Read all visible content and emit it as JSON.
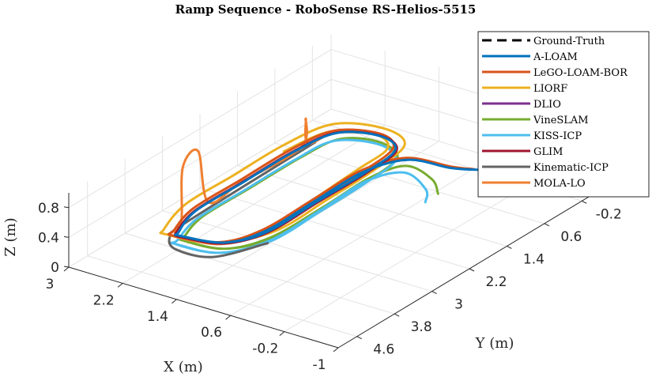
{
  "chart_data": {
    "type": "line",
    "projection": "3d",
    "title": "Ramp Sequence - RoboSense RS-Helios-5515",
    "xlabel": "X (m)",
    "ylabel": "Y (m)",
    "zlabel": "Z (m)",
    "xlim": [
      -1,
      3
    ],
    "ylim": [
      -0.6,
      5
    ],
    "zlim": [
      0,
      1
    ],
    "xticks": [
      "3",
      "2.2",
      "1.4",
      "0.6",
      "-0.2",
      "-1"
    ],
    "xtick_values": [
      3,
      2.2,
      1.4,
      0.6,
      -0.2,
      -1
    ],
    "yticks": [
      "-0.2",
      "0.6",
      "1.4",
      "2.2",
      "3",
      "3.8",
      "4.6"
    ],
    "ytick_values": [
      -0.2,
      0.6,
      1.4,
      2.2,
      3,
      3.8,
      4.6
    ],
    "zticks": [
      "0",
      "0.4",
      "0.8"
    ],
    "ztick_values": [
      0,
      0.4,
      0.8
    ],
    "grid": true,
    "legend_position": "top-right",
    "series": [
      {
        "name": "Ground-Truth",
        "color": "#000000",
        "dashed": true,
        "points": []
      },
      {
        "name": "VineSLAM",
        "color": "#77AC30",
        "points": [
          [
            2.0,
            4.0,
            0.25
          ],
          [
            1.45,
            3.9,
            0.25
          ],
          [
            1.15,
            3.3,
            0.25
          ],
          [
            1.12,
            2.2,
            0.25
          ],
          [
            1.15,
            1.2,
            0.25
          ],
          [
            1.25,
            0.5,
            0.25
          ],
          [
            1.7,
            0.28,
            0.25
          ],
          [
            2.12,
            0.5,
            0.25
          ],
          [
            2.2,
            1.2,
            0.25
          ],
          [
            2.2,
            2.3,
            0.25
          ],
          [
            2.2,
            3.3,
            0.25
          ],
          [
            2.05,
            3.9,
            0.25
          ],
          [
            2.0,
            4.0,
            0.25
          ],
          [
            1.45,
            3.9,
            0.25
          ],
          [
            1.18,
            3.3,
            0.25
          ],
          [
            1.16,
            2.2,
            0.25
          ],
          [
            1.18,
            1.2,
            0.25
          ],
          [
            1.05,
            0.6,
            0.22
          ],
          [
            0.6,
            0.7,
            0.2
          ],
          [
            0.3,
            1.0,
            0.2
          ]
        ]
      },
      {
        "name": "KISS-ICP",
        "color": "#4DBEEE",
        "points": [
          [
            2.1,
            4.05,
            0.2
          ],
          [
            1.5,
            3.95,
            0.2
          ],
          [
            1.18,
            3.3,
            0.2
          ],
          [
            1.18,
            2.2,
            0.2
          ],
          [
            1.2,
            1.2,
            0.2
          ],
          [
            1.28,
            0.5,
            0.2
          ],
          [
            1.7,
            0.25,
            0.2
          ],
          [
            2.2,
            0.48,
            0.2
          ],
          [
            2.28,
            1.2,
            0.2
          ],
          [
            2.28,
            2.3,
            0.2
          ],
          [
            2.28,
            3.3,
            0.2
          ],
          [
            2.12,
            3.95,
            0.2
          ],
          [
            2.1,
            4.05,
            0.2
          ],
          [
            1.5,
            3.95,
            0.2
          ],
          [
            1.2,
            3.3,
            0.2
          ],
          [
            1.2,
            2.2,
            0.2
          ],
          [
            1.22,
            1.2,
            0.2
          ],
          [
            1.0,
            0.7,
            0.18
          ],
          [
            0.55,
            0.9,
            0.15
          ],
          [
            0.35,
            1.2,
            0.15
          ]
        ]
      },
      {
        "name": "Kinematic-ICP",
        "color": "#636363",
        "points": [
          [
            1.3,
            3.2,
            0.1
          ],
          [
            1.61,
            3.91,
            0.1
          ],
          [
            2.1,
            4.0,
            0.1
          ],
          [
            2.37,
            3.75,
            0.1
          ],
          [
            2.45,
            3.3,
            0.1
          ],
          [
            2.49,
            0.47,
            0.1
          ]
        ]
      },
      {
        "name": "LIORF",
        "color": "#EDB120",
        "points": [
          [
            2.15,
            4.15,
            0.35
          ],
          [
            1.5,
            4.0,
            0.35
          ],
          [
            1.12,
            3.3,
            0.35
          ],
          [
            1.12,
            2.2,
            0.35
          ],
          [
            1.14,
            1.2,
            0.35
          ],
          [
            1.25,
            0.35,
            0.35
          ],
          [
            1.72,
            0.1,
            0.35
          ],
          [
            2.3,
            0.35,
            0.35
          ],
          [
            2.45,
            1.2,
            0.35
          ],
          [
            2.45,
            2.3,
            0.35
          ],
          [
            2.45,
            3.3,
            0.35
          ],
          [
            2.25,
            4.05,
            0.35
          ],
          [
            2.15,
            4.15,
            0.35
          ],
          [
            1.55,
            3.95,
            0.32
          ],
          [
            1.25,
            3.3,
            0.32
          ],
          [
            1.3,
            2.2,
            0.32
          ],
          [
            1.35,
            1.2,
            0.32
          ],
          [
            1.4,
            0.5,
            0.32
          ],
          [
            1.75,
            0.25,
            0.32
          ],
          [
            2.25,
            0.5,
            0.32
          ],
          [
            2.38,
            1.3,
            0.32
          ]
        ]
      },
      {
        "name": "MOLA-LO",
        "color": "#F07F30",
        "points": [
          [
            2.05,
            4.05,
            0.3
          ],
          [
            1.5,
            3.9,
            0.3
          ],
          [
            1.24,
            3.3,
            0.3
          ],
          [
            1.24,
            2.2,
            0.3
          ],
          [
            1.24,
            1.2,
            0.3
          ],
          [
            1.32,
            0.45,
            0.3
          ],
          [
            1.7,
            0.2,
            0.3
          ],
          [
            2.2,
            0.45,
            0.3
          ],
          [
            2.3,
            0.9,
            0.3
          ],
          [
            2.3,
            0.95,
            0.65
          ],
          [
            2.3,
            1.05,
            0.3
          ],
          [
            2.32,
            2.3,
            0.3
          ],
          [
            2.32,
            3.0,
            0.3
          ],
          [
            2.4,
            3.1,
            1.0
          ],
          [
            2.35,
            3.5,
            0.95
          ],
          [
            2.3,
            3.6,
            0.3
          ],
          [
            2.15,
            3.95,
            0.3
          ],
          [
            2.05,
            4.05,
            0.3
          ]
        ]
      },
      {
        "name": "LeGO-LOAM-BOR",
        "color": "#D95319",
        "points": [
          [
            2.1,
            4.08,
            0.32
          ],
          [
            1.52,
            3.9,
            0.32
          ],
          [
            1.27,
            3.3,
            0.32
          ],
          [
            1.27,
            2.2,
            0.32
          ],
          [
            1.27,
            1.2,
            0.32
          ],
          [
            1.35,
            0.45,
            0.32
          ],
          [
            1.72,
            0.2,
            0.32
          ],
          [
            2.22,
            0.45,
            0.32
          ],
          [
            2.34,
            1.2,
            0.32
          ],
          [
            2.34,
            2.3,
            0.32
          ],
          [
            2.34,
            3.3,
            0.32
          ],
          [
            2.17,
            3.95,
            0.32
          ],
          [
            2.1,
            4.08,
            0.32
          ],
          [
            1.52,
            3.9,
            0.32
          ],
          [
            1.3,
            3.3,
            0.32
          ],
          [
            1.3,
            2.2,
            0.32
          ],
          [
            1.3,
            1.2,
            0.32
          ],
          [
            1.12,
            0.5,
            0.27
          ],
          [
            0.6,
            0.3,
            0.22
          ],
          [
            0.32,
            0.2,
            0.22
          ]
        ]
      },
      {
        "name": "DLIO",
        "color": "#7E2F8E",
        "points": [
          [
            2.06,
            4.02,
            0.3
          ],
          [
            1.5,
            3.87,
            0.3
          ],
          [
            1.24,
            3.3,
            0.3
          ],
          [
            1.24,
            2.2,
            0.3
          ],
          [
            1.24,
            1.2,
            0.3
          ],
          [
            1.31,
            0.45,
            0.3
          ],
          [
            1.7,
            0.21,
            0.3
          ],
          [
            2.19,
            0.45,
            0.3
          ],
          [
            2.31,
            1.2,
            0.3
          ],
          [
            2.31,
            2.3,
            0.3
          ],
          [
            2.31,
            3.3,
            0.3
          ],
          [
            2.13,
            3.93,
            0.3
          ],
          [
            2.06,
            4.02,
            0.3
          ]
        ]
      },
      {
        "name": "GLIM",
        "color": "#A2142F",
        "points": [
          [
            2.07,
            4.03,
            0.3
          ],
          [
            1.5,
            3.88,
            0.3
          ],
          [
            1.23,
            3.3,
            0.3
          ],
          [
            1.23,
            2.2,
            0.3
          ],
          [
            1.23,
            1.2,
            0.3
          ],
          [
            1.3,
            0.45,
            0.3
          ],
          [
            1.7,
            0.21,
            0.3
          ],
          [
            2.2,
            0.46,
            0.3
          ],
          [
            2.31,
            1.2,
            0.3
          ],
          [
            2.31,
            2.3,
            0.3
          ],
          [
            2.31,
            3.3,
            0.3
          ],
          [
            2.14,
            3.94,
            0.3
          ],
          [
            2.07,
            4.03,
            0.3
          ]
        ]
      },
      {
        "name": "A-LOAM",
        "color": "#0072BD",
        "points": [
          [
            2.05,
            4.0,
            0.3
          ],
          [
            1.5,
            3.85,
            0.3
          ],
          [
            1.25,
            3.3,
            0.3
          ],
          [
            1.25,
            2.2,
            0.3
          ],
          [
            1.25,
            1.2,
            0.3
          ],
          [
            1.32,
            0.45,
            0.3
          ],
          [
            1.7,
            0.22,
            0.3
          ],
          [
            2.18,
            0.45,
            0.3
          ],
          [
            2.3,
            1.2,
            0.3
          ],
          [
            2.3,
            2.3,
            0.3
          ],
          [
            2.3,
            3.3,
            0.3
          ],
          [
            2.12,
            3.92,
            0.3
          ],
          [
            2.05,
            4.0,
            0.3
          ],
          [
            1.5,
            3.85,
            0.3
          ],
          [
            1.28,
            3.3,
            0.3
          ],
          [
            1.28,
            2.2,
            0.3
          ],
          [
            1.28,
            1.2,
            0.3
          ],
          [
            1.1,
            0.5,
            0.25
          ],
          [
            0.6,
            0.3,
            0.2
          ],
          [
            0.3,
            0.15,
            0.2
          ]
        ]
      }
    ],
    "legend": [
      {
        "name": "Ground-Truth",
        "color": "#000000",
        "dashed": true
      },
      {
        "name": "A-LOAM",
        "color": "#0072BD"
      },
      {
        "name": "LeGO-LOAM-BOR",
        "color": "#D95319"
      },
      {
        "name": "LIORF",
        "color": "#EDB120"
      },
      {
        "name": "DLIO",
        "color": "#7E2F8E"
      },
      {
        "name": "VineSLAM",
        "color": "#77AC30"
      },
      {
        "name": "KISS-ICP",
        "color": "#4DBEEE"
      },
      {
        "name": "GLIM",
        "color": "#A2142F"
      },
      {
        "name": "Kinematic-ICP",
        "color": "#636363"
      },
      {
        "name": "MOLA-LO",
        "color": "#F07F30"
      }
    ]
  }
}
